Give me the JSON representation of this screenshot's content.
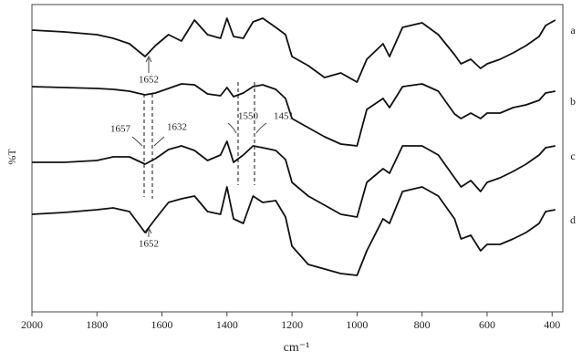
{
  "chart_data": {
    "type": "line",
    "x_label": "cm⁻¹",
    "y_label": "%T",
    "x": [
      2000,
      1900,
      1800,
      1750,
      1700,
      1652,
      1620,
      1580,
      1540,
      1500,
      1460,
      1420,
      1400,
      1380,
      1350,
      1320,
      1290,
      1250,
      1220,
      1200,
      1150,
      1100,
      1050,
      1000,
      970,
      920,
      900,
      860,
      800,
      750,
      700,
      680,
      650,
      620,
      600,
      560,
      520,
      480,
      440,
      420,
      390
    ],
    "series": [
      {
        "name": "a",
        "color": "#111111",
        "values": [
          309,
          307,
          304,
          300,
          294,
          280,
          292,
          304,
          297,
          320,
          304,
          300,
          322,
          302,
          300,
          318,
          322,
          312,
          304,
          280,
          270,
          257,
          262,
          252,
          277,
          294,
          280,
          312,
          317,
          304,
          282,
          272,
          277,
          267,
          272,
          277,
          284,
          292,
          302,
          314,
          320
        ]
      },
      {
        "name": "b",
        "color": "#111111",
        "values": [
          247,
          246,
          245,
          244,
          242,
          238,
          240,
          245,
          250,
          249,
          239,
          237,
          246,
          236,
          240,
          247,
          249,
          244,
          234,
          212,
          202,
          192,
          184,
          182,
          222,
          234,
          224,
          247,
          250,
          242,
          217,
          212,
          218,
          212,
          218,
          218,
          224,
          227,
          232,
          240,
          242
        ]
      },
      {
        "name": "c",
        "color": "#111111",
        "values": [
          164,
          164,
          166,
          170,
          170,
          162,
          168,
          178,
          182,
          177,
          166,
          172,
          187,
          164,
          172,
          182,
          180,
          177,
          167,
          142,
          127,
          117,
          107,
          104,
          142,
          157,
          152,
          182,
          182,
          172,
          147,
          137,
          144,
          132,
          142,
          147,
          154,
          162,
          172,
          180,
          182
        ]
      },
      {
        "name": "d",
        "color": "#111111",
        "values": [
          107,
          109,
          112,
          114,
          110,
          87,
          102,
          120,
          124,
          127,
          110,
          107,
          137,
          102,
          97,
          127,
          120,
          122,
          104,
          72,
          52,
          47,
          42,
          40,
          67,
          102,
          97,
          132,
          137,
          127,
          102,
          80,
          84,
          67,
          74,
          74,
          80,
          87,
          97,
          110,
          112
        ]
      }
    ],
    "annotations": [
      "1652",
      "1657",
      "1632",
      "1550",
      "1451",
      "1652"
    ],
    "xlim": [
      2000,
      367
    ],
    "ylim": [
      0,
      337
    ],
    "xticks": [
      2000,
      1800,
      1600,
      1400,
      1200,
      1000,
      800,
      600,
      400
    ]
  }
}
